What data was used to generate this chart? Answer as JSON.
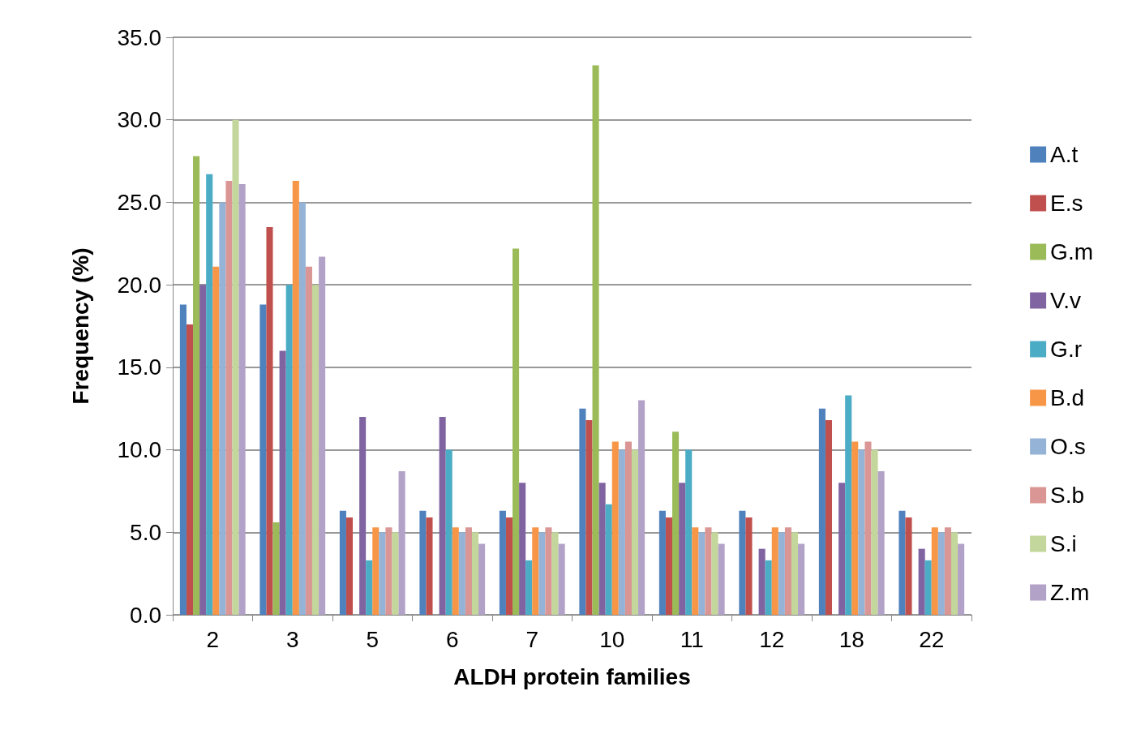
{
  "chart_data": {
    "type": "bar",
    "xlabel": "ALDH protein families",
    "ylabel": "Frequency (%)",
    "categories": [
      "2",
      "3",
      "5",
      "6",
      "7",
      "10",
      "11",
      "12",
      "18",
      "22"
    ],
    "series": [
      {
        "name": "A.t",
        "color": "#4f81bd",
        "values": [
          18.8,
          18.8,
          6.3,
          6.3,
          6.3,
          12.5,
          6.3,
          6.3,
          12.5,
          6.3
        ]
      },
      {
        "name": "E.s",
        "color": "#c0504d",
        "values": [
          17.6,
          23.5,
          5.9,
          5.9,
          5.9,
          11.8,
          5.9,
          5.9,
          11.8,
          5.9
        ]
      },
      {
        "name": "G.m",
        "color": "#9bbb59",
        "values": [
          27.8,
          5.6,
          0,
          0,
          22.2,
          33.3,
          11.1,
          0,
          0,
          0
        ]
      },
      {
        "name": "V.v",
        "color": "#8064a2",
        "values": [
          20.0,
          16.0,
          12.0,
          12.0,
          8.0,
          8.0,
          8.0,
          4.0,
          8.0,
          4.0
        ]
      },
      {
        "name": "G.r",
        "color": "#4bacc6",
        "values": [
          26.7,
          20.0,
          3.3,
          10.0,
          3.3,
          6.7,
          10.0,
          3.3,
          13.3,
          3.3
        ]
      },
      {
        "name": "B.d",
        "color": "#f79646",
        "values": [
          21.1,
          26.3,
          5.3,
          5.3,
          5.3,
          10.5,
          5.3,
          5.3,
          10.5,
          5.3
        ]
      },
      {
        "name": "O.s",
        "color": "#95b3d7",
        "values": [
          25.0,
          25.0,
          5.0,
          5.0,
          5.0,
          10.0,
          5.0,
          5.0,
          10.0,
          5.0
        ]
      },
      {
        "name": "S.b",
        "color": "#da9694",
        "values": [
          26.3,
          21.1,
          5.3,
          5.3,
          5.3,
          10.5,
          5.3,
          5.3,
          10.5,
          5.3
        ]
      },
      {
        "name": "S.i",
        "color": "#c3d69b",
        "values": [
          30.0,
          20.0,
          5.0,
          5.0,
          5.0,
          10.0,
          5.0,
          5.0,
          10.0,
          5.0
        ]
      },
      {
        "name": "Z.m",
        "color": "#b2a2c7",
        "values": [
          26.1,
          21.7,
          8.7,
          4.3,
          4.3,
          13.0,
          4.3,
          4.3,
          8.7,
          4.3
        ]
      }
    ],
    "ylim": [
      0,
      35
    ],
    "yticks": [
      {
        "value": 0,
        "label": "0.0"
      },
      {
        "value": 5,
        "label": "5.0"
      },
      {
        "value": 10,
        "label": "10.0"
      },
      {
        "value": 15,
        "label": "15.0"
      },
      {
        "value": 20,
        "label": "20.0"
      },
      {
        "value": 25,
        "label": "25.0"
      },
      {
        "value": 30,
        "label": "30.0"
      },
      {
        "value": 35,
        "label": "35.0"
      }
    ],
    "grid": "y",
    "legend": "right"
  }
}
